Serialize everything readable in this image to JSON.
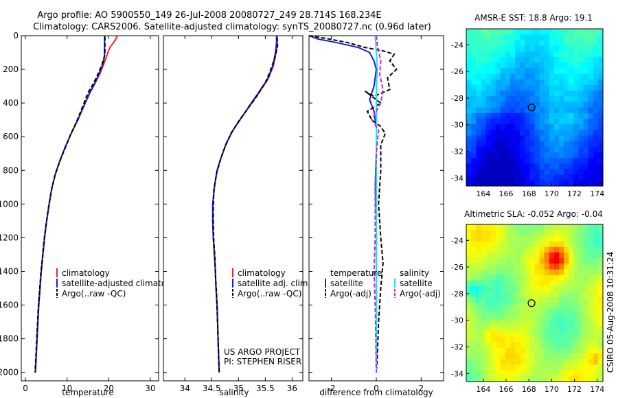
{
  "figure": {
    "title_line1": "Argo profile: AO 5900550_149 26-Jul-2008 20080727_249 28.714S 168.234E",
    "title_line2": "Climatology: CARS2006. Satellite-adjusted climatology: synTS_20080727.nc (0.96d later)",
    "side_stamp": "CSIRO 05-Aug-2008 10:31:24",
    "credit_line1": "US ARGO PROJECT",
    "credit_line2": "PI: STEPHEN RISER"
  },
  "colors": {
    "climatology": "#e8262a",
    "satellite": "#1a1adb",
    "argo": "#000000",
    "salinity_satellite": "#22e0f0",
    "salinity_argo": "#d020c8"
  },
  "chart_data": [
    {
      "type": "line",
      "id": "temperature",
      "xlabel": "temperature",
      "xlim": [
        -1,
        32
      ],
      "ylim": [
        0,
        2050
      ],
      "x_ticks": [
        0,
        10,
        20,
        30
      ],
      "y_ticks": [
        0,
        200,
        400,
        600,
        800,
        1000,
        1200,
        1400,
        1600,
        1800,
        2000
      ],
      "legend": [
        "climatology",
        "satellite-adjusted climatology",
        "Argo(..raw -QC)"
      ],
      "series": [
        {
          "name": "climatology",
          "color": "#e8262a",
          "style": "solid",
          "points": [
            [
              22,
              0
            ],
            [
              21.7,
              20
            ],
            [
              21.2,
              40
            ],
            [
              20.3,
              70
            ],
            [
              19.8,
              100
            ],
            [
              19.4,
              130
            ],
            [
              18.8,
              170
            ],
            [
              18.0,
              220
            ],
            [
              16.8,
              280
            ],
            [
              15.5,
              340
            ],
            [
              14.0,
              420
            ],
            [
              12.6,
              500
            ],
            [
              11.0,
              580
            ],
            [
              9.6,
              660
            ],
            [
              8.3,
              740
            ],
            [
              7.2,
              820
            ],
            [
              6.4,
              900
            ],
            [
              5.7,
              1000
            ],
            [
              5.1,
              1100
            ],
            [
              4.6,
              1200
            ],
            [
              4.2,
              1300
            ],
            [
              3.8,
              1400
            ],
            [
              3.5,
              1500
            ],
            [
              3.2,
              1600
            ],
            [
              3.0,
              1700
            ],
            [
              2.8,
              1800
            ],
            [
              2.6,
              1900
            ],
            [
              2.4,
              2000
            ]
          ]
        },
        {
          "name": "satellite-adjusted climatology",
          "color": "#1a1adb",
          "style": "solid",
          "points": [
            [
              19.0,
              0
            ],
            [
              19.0,
              20
            ],
            [
              19.0,
              40
            ],
            [
              19.0,
              70
            ],
            [
              19.0,
              100
            ],
            [
              19.0,
              120
            ],
            [
              18.6,
              170
            ],
            [
              17.8,
              220
            ],
            [
              16.7,
              280
            ],
            [
              15.4,
              340
            ],
            [
              14.0,
              420
            ],
            [
              12.6,
              500
            ],
            [
              11.0,
              580
            ],
            [
              9.6,
              660
            ],
            [
              8.3,
              740
            ],
            [
              7.2,
              820
            ],
            [
              6.4,
              900
            ],
            [
              5.7,
              1000
            ],
            [
              5.1,
              1100
            ],
            [
              4.6,
              1200
            ],
            [
              4.2,
              1300
            ],
            [
              3.8,
              1400
            ],
            [
              3.5,
              1500
            ],
            [
              3.2,
              1600
            ],
            [
              3.0,
              1700
            ],
            [
              2.8,
              1800
            ],
            [
              2.6,
              1900
            ],
            [
              2.4,
              2000
            ]
          ]
        },
        {
          "name": "Argo(..raw -QC)",
          "color": "#000000",
          "style": "dashed",
          "points": [
            [
              19.1,
              5
            ],
            [
              19.1,
              40
            ],
            [
              19.1,
              100
            ],
            [
              19.0,
              120
            ],
            [
              18.4,
              170
            ],
            [
              17.5,
              225
            ],
            [
              16.2,
              290
            ],
            [
              15.0,
              340
            ],
            [
              13.6,
              430
            ],
            [
              12.3,
              510
            ],
            [
              10.8,
              590
            ],
            [
              9.5,
              670
            ],
            [
              8.2,
              750
            ],
            [
              7.1,
              830
            ],
            [
              6.3,
              910
            ],
            [
              5.6,
              1010
            ],
            [
              5.0,
              1110
            ],
            [
              4.5,
              1210
            ],
            [
              4.1,
              1310
            ],
            [
              3.7,
              1410
            ],
            [
              3.4,
              1510
            ],
            [
              3.1,
              1610
            ],
            [
              2.9,
              1710
            ],
            [
              2.7,
              1810
            ],
            [
              2.5,
              1910
            ],
            [
              2.3,
              2000
            ]
          ]
        }
      ]
    },
    {
      "type": "line",
      "id": "salinity",
      "xlabel": "salinity",
      "xlim": [
        33.6,
        36.2
      ],
      "ylim": [
        0,
        2050
      ],
      "x_ticks": [
        34,
        34.5,
        35,
        35.5,
        36
      ],
      "legend": [
        "climatology",
        "satellite adj. clim.",
        "Argo(..raw -QC)"
      ],
      "series": [
        {
          "name": "climatology",
          "color": "#e8262a",
          "style": "solid",
          "points": [
            [
              35.72,
              0
            ],
            [
              35.72,
              40
            ],
            [
              35.7,
              100
            ],
            [
              35.65,
              180
            ],
            [
              35.55,
              260
            ],
            [
              35.4,
              330
            ],
            [
              35.25,
              400
            ],
            [
              35.07,
              480
            ],
            [
              34.9,
              560
            ],
            [
              34.77,
              640
            ],
            [
              34.68,
              720
            ],
            [
              34.6,
              800
            ],
            [
              34.55,
              900
            ],
            [
              34.52,
              1000
            ],
            [
              34.52,
              1100
            ],
            [
              34.53,
              1200
            ],
            [
              34.55,
              1300
            ],
            [
              34.57,
              1400
            ],
            [
              34.58,
              1500
            ],
            [
              34.6,
              1600
            ],
            [
              34.61,
              1700
            ],
            [
              34.62,
              1800
            ],
            [
              34.63,
              1900
            ],
            [
              34.64,
              2000
            ]
          ]
        },
        {
          "name": "satellite adj. clim.",
          "color": "#1a1adb",
          "style": "solid",
          "points": [
            [
              35.71,
              0
            ],
            [
              35.71,
              40
            ],
            [
              35.69,
              100
            ],
            [
              35.64,
              180
            ],
            [
              35.54,
              260
            ],
            [
              35.39,
              330
            ],
            [
              35.24,
              400
            ],
            [
              35.07,
              480
            ],
            [
              34.9,
              560
            ],
            [
              34.77,
              640
            ],
            [
              34.68,
              720
            ],
            [
              34.6,
              800
            ],
            [
              34.55,
              900
            ],
            [
              34.52,
              1000
            ],
            [
              34.52,
              1100
            ],
            [
              34.53,
              1200
            ],
            [
              34.55,
              1300
            ],
            [
              34.57,
              1400
            ],
            [
              34.58,
              1500
            ],
            [
              34.6,
              1600
            ],
            [
              34.61,
              1700
            ],
            [
              34.62,
              1800
            ],
            [
              34.63,
              1900
            ],
            [
              34.64,
              2000
            ]
          ]
        },
        {
          "name": "Argo(..raw -QC)",
          "color": "#000000",
          "style": "dashed",
          "points": [
            [
              35.72,
              10
            ],
            [
              35.73,
              60
            ],
            [
              35.68,
              130
            ],
            [
              35.58,
              220
            ],
            [
              35.5,
              280
            ],
            [
              35.34,
              360
            ],
            [
              35.18,
              430
            ],
            [
              35.02,
              500
            ],
            [
              34.86,
              580
            ],
            [
              34.75,
              660
            ],
            [
              34.66,
              740
            ],
            [
              34.59,
              820
            ],
            [
              34.54,
              920
            ],
            [
              34.53,
              1020
            ],
            [
              34.53,
              1120
            ],
            [
              34.54,
              1220
            ],
            [
              34.56,
              1320
            ],
            [
              34.57,
              1420
            ],
            [
              34.59,
              1520
            ],
            [
              34.6,
              1620
            ],
            [
              34.61,
              1720
            ],
            [
              34.62,
              1820
            ],
            [
              34.63,
              1920
            ],
            [
              34.64,
              2000
            ]
          ]
        }
      ]
    },
    {
      "type": "line",
      "id": "difference",
      "xlabel": "difference from climatology",
      "xlim": [
        -3,
        3
      ],
      "ylim": [
        0,
        2050
      ],
      "x_ticks": [
        -2,
        0,
        2
      ],
      "legend_left_title": "temperature",
      "legend_left": [
        "satellite",
        "Argo(-adj)"
      ],
      "legend_right_title": "salinity",
      "legend_right": [
        "satellite",
        "Argo(-adj)"
      ],
      "series": [
        {
          "name": "temperature satellite",
          "color": "#1a1adb",
          "style": "solid",
          "points": [
            [
              -3.0,
              0
            ],
            [
              -2.6,
              20
            ],
            [
              -1.8,
              40
            ],
            [
              -0.8,
              70
            ],
            [
              -0.3,
              100
            ],
            [
              -0.1,
              150
            ],
            [
              0.0,
              200
            ],
            [
              -0.1,
              300
            ],
            [
              -0.3,
              380
            ],
            [
              -0.1,
              450
            ],
            [
              0.0,
              550
            ],
            [
              0.0,
              700
            ],
            [
              -0.05,
              900
            ],
            [
              0.0,
              1100
            ],
            [
              0.0,
              1400
            ],
            [
              0.0,
              1700
            ],
            [
              0.0,
              2000
            ]
          ]
        },
        {
          "name": "temperature Argo(-adj)",
          "color": "#000000",
          "style": "dashed",
          "points": [
            [
              -3.0,
              0
            ],
            [
              -2.3,
              15
            ],
            [
              -1.3,
              40
            ],
            [
              -0.5,
              70
            ],
            [
              0.3,
              90
            ],
            [
              0.8,
              110
            ],
            [
              0.6,
              150
            ],
            [
              0.9,
              200
            ],
            [
              0.5,
              250
            ],
            [
              0.6,
              320
            ],
            [
              -0.1,
              360
            ],
            [
              -0.5,
              330
            ],
            [
              0.2,
              400
            ],
            [
              -0.4,
              450
            ],
            [
              -0.2,
              500
            ],
            [
              0.2,
              540
            ],
            [
              0.4,
              580
            ],
            [
              0.2,
              650
            ],
            [
              0.2,
              800
            ],
            [
              0.1,
              1000
            ],
            [
              0.2,
              1200
            ],
            [
              0.3,
              1350
            ],
            [
              0.2,
              1500
            ],
            [
              0.1,
              1700
            ],
            [
              0.05,
              1900
            ],
            [
              0.0,
              2000
            ]
          ]
        },
        {
          "name": "salinity satellite",
          "color": "#22e0f0",
          "style": "solid",
          "points": [
            [
              -0.05,
              0
            ],
            [
              0.0,
              100
            ],
            [
              0.05,
              200
            ],
            [
              0.0,
              300
            ],
            [
              0.0,
              500
            ],
            [
              0.0,
              800
            ],
            [
              0.0,
              1100
            ],
            [
              0.0,
              1400
            ],
            [
              0.0,
              1700
            ],
            [
              0.0,
              2000
            ]
          ]
        },
        {
          "name": "salinity Argo(-adj)",
          "color": "#d020c8",
          "style": "dashed",
          "points": [
            [
              0.0,
              0
            ],
            [
              0.05,
              60
            ],
            [
              0.2,
              150
            ],
            [
              0.15,
              230
            ],
            [
              0.3,
              320
            ],
            [
              0.2,
              400
            ],
            [
              -0.2,
              500
            ],
            [
              0.1,
              560
            ],
            [
              0.0,
              700
            ],
            [
              -0.05,
              900
            ],
            [
              -0.05,
              1200
            ],
            [
              -0.1,
              1400
            ],
            [
              -0.05,
              1600
            ],
            [
              -0.02,
              1800
            ],
            [
              0.0,
              2000
            ]
          ]
        }
      ]
    },
    {
      "type": "heatmap",
      "id": "sst_map",
      "title": "AMSR-E SST: 18.8 Argo: 19.1",
      "xlim": [
        162.5,
        174.5
      ],
      "ylim": [
        -34.6,
        -22.8
      ],
      "x_ticks": [
        164,
        166,
        168,
        170,
        172,
        174
      ],
      "y_ticks": [
        -24,
        -26,
        -28,
        -30,
        -32,
        -34
      ],
      "marker": {
        "lon": 168.234,
        "lat": -28.714
      }
    },
    {
      "type": "heatmap",
      "id": "sla_map",
      "title": "Altimetric SLA: -0.052 Argo: -0.04",
      "xlim": [
        162.5,
        174.5
      ],
      "ylim": [
        -34.6,
        -22.8
      ],
      "x_ticks": [
        164,
        166,
        168,
        170,
        172,
        174
      ],
      "y_ticks": [
        -24,
        -26,
        -28,
        -30,
        -32,
        -34
      ],
      "marker": {
        "lon": 168.234,
        "lat": -28.714
      }
    }
  ]
}
